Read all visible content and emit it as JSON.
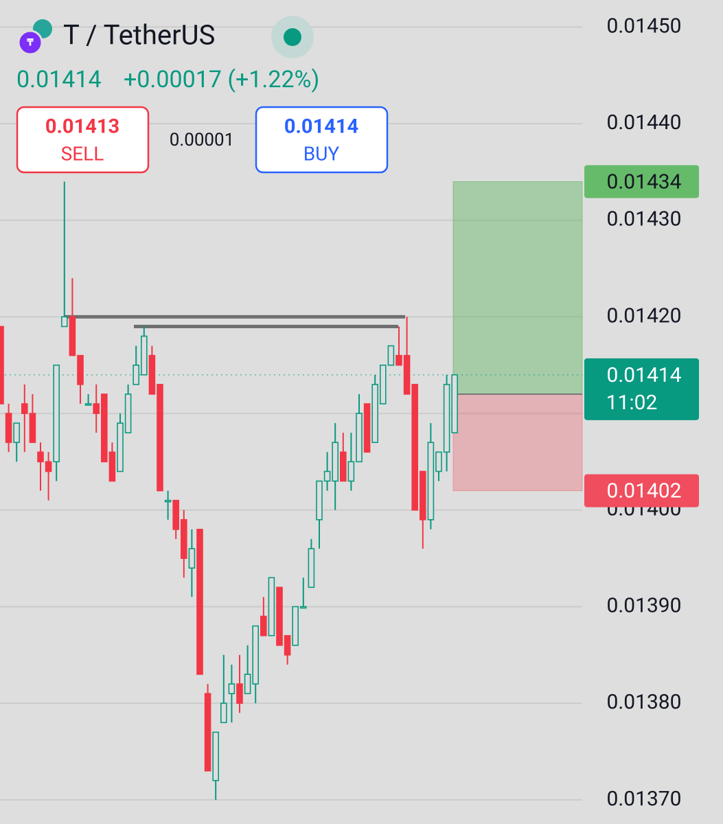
{
  "chart_data": {
    "type": "candlestick",
    "title": "T / TetherUS",
    "last_price": 0.01414,
    "change": "+0.00017 (+1.22%)",
    "sell_price": 0.01413,
    "sell_label": "SELL",
    "spread": "0.00001",
    "buy_price": 0.01414,
    "buy_label": "BUY",
    "countdown": "11:02",
    "colors": {
      "up": "#089981",
      "down": "#f23645"
    },
    "ylim": [
      0.013675,
      0.014528
    ],
    "yticks": [
      {
        "value": 0.0137,
        "label": "0.01370"
      },
      {
        "value": 0.0138,
        "label": "0.01380"
      },
      {
        "value": 0.0139,
        "label": "0.01390"
      },
      {
        "value": 0.014,
        "label": "0.01400"
      },
      {
        "value": 0.0141,
        "label": "0.01410"
      },
      {
        "value": 0.0142,
        "label": "0.01420"
      },
      {
        "value": 0.0143,
        "label": "0.01430"
      },
      {
        "value": 0.0144,
        "label": "0.01440"
      },
      {
        "value": 0.0145,
        "label": "0.01450"
      }
    ],
    "grid": true,
    "horizontal_lines": [
      0.0142,
      0.01419
    ],
    "position": {
      "take_profit": 0.01434,
      "entry": 0.01412,
      "stop_loss": 0.01402
    },
    "open": [
      0.01419,
      0.0141,
      0.01407,
      0.01411,
      0.0141,
      0.01406,
      0.01405,
      0.01405,
      0.01419,
      0.0142,
      0.01416,
      0.01411,
      0.01411,
      0.01412,
      0.01406,
      0.01404,
      0.01408,
      0.01413,
      0.01414,
      0.01416,
      0.01413,
      0.01401,
      0.01401,
      0.01399,
      0.01394,
      0.01398,
      0.01381,
      0.01372,
      0.01378,
      0.01381,
      0.01382,
      0.01381,
      0.01382,
      0.01389,
      0.01387,
      0.01392,
      0.01387,
      0.01386,
      0.0139,
      0.01392,
      0.01399,
      0.01403,
      0.01403,
      0.01406,
      0.01403,
      0.01405,
      0.01411,
      0.01407,
      0.01411,
      0.01415,
      0.01416,
      0.01416,
      0.01413,
      0.01404,
      0.01399,
      0.01404,
      0.01406,
      0.01408
    ],
    "high": [
      0.01419,
      0.01411,
      0.01409,
      0.01413,
      0.01412,
      0.01407,
      0.01406,
      0.01415,
      0.01434,
      0.01424,
      0.01416,
      0.01412,
      0.01413,
      0.01412,
      0.01407,
      0.0141,
      0.01413,
      0.01417,
      0.01419,
      0.01417,
      0.01413,
      0.01402,
      0.01401,
      0.014,
      0.01398,
      0.01398,
      0.01382,
      0.01377,
      0.01385,
      0.01384,
      0.01385,
      0.01386,
      0.01388,
      0.01391,
      0.01393,
      0.01392,
      0.01387,
      0.0139,
      0.01393,
      0.01397,
      0.01403,
      0.01406,
      0.01409,
      0.01408,
      0.01408,
      0.01412,
      0.01411,
      0.01414,
      0.01415,
      0.01417,
      0.01419,
      0.0142,
      0.01413,
      0.01404,
      0.01409,
      0.01406,
      0.01414,
      0.01414
    ],
    "low": [
      0.01411,
      0.01406,
      0.01405,
      0.01406,
      0.01407,
      0.01402,
      0.01401,
      0.01403,
      0.01419,
      0.01416,
      0.01411,
      0.01411,
      0.01408,
      0.01405,
      0.01403,
      0.01404,
      0.01408,
      0.01413,
      0.01414,
      0.01412,
      0.01402,
      0.01399,
      0.01397,
      0.01393,
      0.01391,
      0.01383,
      0.01373,
      0.0137,
      0.01378,
      0.01378,
      0.01379,
      0.01381,
      0.0138,
      0.01387,
      0.01387,
      0.01386,
      0.01384,
      0.01386,
      0.0139,
      0.01392,
      0.01396,
      0.01402,
      0.014,
      0.01403,
      0.01402,
      0.01405,
      0.01406,
      0.01407,
      0.01411,
      0.01415,
      0.01415,
      0.01412,
      0.014,
      0.01396,
      0.01398,
      0.01403,
      0.01404,
      0.01408
    ],
    "close": [
      0.01411,
      0.01407,
      0.01409,
      0.0141,
      0.01407,
      0.01405,
      0.01404,
      0.01415,
      0.0142,
      0.01416,
      0.01413,
      0.01411,
      0.0141,
      0.01405,
      0.01403,
      0.01409,
      0.01412,
      0.01415,
      0.01418,
      0.01412,
      0.01402,
      0.01401,
      0.01398,
      0.01395,
      0.01396,
      0.01383,
      0.01373,
      0.01377,
      0.0138,
      0.01382,
      0.0138,
      0.01383,
      0.01388,
      0.01387,
      0.01393,
      0.01386,
      0.01385,
      0.0139,
      0.0139,
      0.01396,
      0.01403,
      0.01404,
      0.01407,
      0.01403,
      0.01405,
      0.0141,
      0.01406,
      0.01413,
      0.01415,
      0.01417,
      0.01415,
      0.01412,
      0.014,
      0.01399,
      0.01407,
      0.01406,
      0.01413,
      0.01414
    ]
  }
}
